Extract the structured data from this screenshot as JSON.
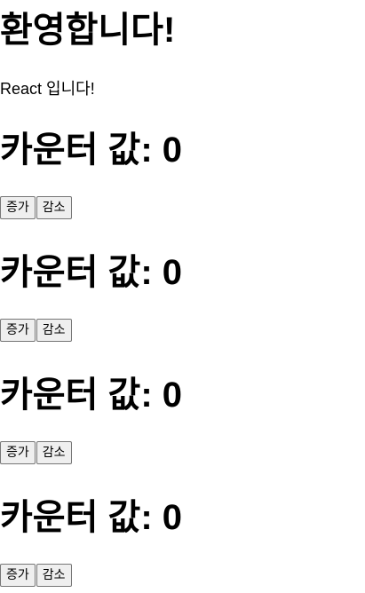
{
  "header": {
    "title": "환영합니다!",
    "subtitle": "React 입니다!"
  },
  "counters": [
    {
      "label": "카운터 값: 0",
      "increase_label": "증가",
      "decrease_label": "감소"
    },
    {
      "label": "카운터 값: 0",
      "increase_label": "증가",
      "decrease_label": "감소"
    },
    {
      "label": "카운터 값: 0",
      "increase_label": "증가",
      "decrease_label": "감소"
    },
    {
      "label": "카운터 값: 0",
      "increase_label": "증가",
      "decrease_label": "감소"
    }
  ]
}
